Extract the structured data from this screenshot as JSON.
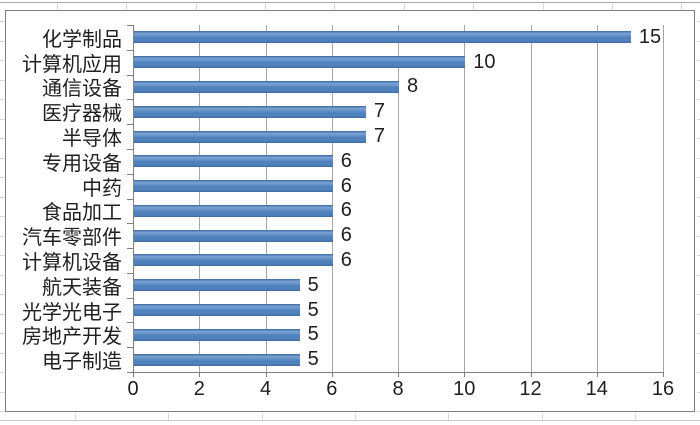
{
  "colors": {
    "bar": "#4f81bd",
    "bar_edge": "#3d699f",
    "bar_highlight": "#7ca4d4",
    "gridline": "#a6a6a6",
    "axis": "#808080",
    "text": "#1f1f1f",
    "chart_border": "#7f7f7f",
    "sheet_gridline": "#d9d9d9",
    "sheet_row_line": "#a8a8a8",
    "background": "#ffffff"
  },
  "chart_data": {
    "type": "bar",
    "orientation": "horizontal",
    "title": "",
    "xlabel": "",
    "ylabel": "",
    "categories": [
      "化学制品",
      "计算机应用",
      "通信设备",
      "医疗器械",
      "半导体",
      "专用设备",
      "中药",
      "食品加工",
      "汽车零部件",
      "计算机设备",
      "航天装备",
      "光学光电子",
      "房地产开发",
      "电子制造"
    ],
    "values": [
      15,
      10,
      8,
      7,
      7,
      6,
      6,
      6,
      6,
      6,
      5,
      5,
      5,
      5
    ],
    "data_labels": [
      "15",
      "10",
      "8",
      "7",
      "7",
      "6",
      "6",
      "6",
      "6",
      "6",
      "5",
      "5",
      "5",
      "5"
    ],
    "xlim": [
      0,
      16
    ],
    "x_ticks": [
      0,
      2,
      4,
      6,
      8,
      10,
      12,
      14,
      16
    ],
    "x_tick_labels": [
      "0",
      "2",
      "4",
      "6",
      "8",
      "10",
      "12",
      "14",
      "16"
    ],
    "grid": "vertical-only",
    "legend": "none",
    "data_labels_shown": true
  }
}
